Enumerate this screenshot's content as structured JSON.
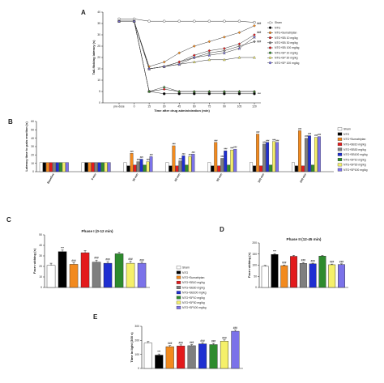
{
  "colors": {
    "Sham": "#ffffff",
    "NTG": "#000000",
    "NTG+Sumatriptan": "#f28a1e",
    "NTG+SB10": "#e31a1c",
    "NTG+SB30": "#7f7f7f",
    "NTG+SB100": "#1f2fd1",
    "NTG+SP10": "#2e8b2e",
    "NTG+SP30": "#f5f06a",
    "NTG+SP100": "#7b72e9"
  },
  "chart_data": [
    {
      "panel": "A",
      "type": "line",
      "xlabel": "Time after drug administration (min)",
      "ylabel": "Tail-flicking latency (s)",
      "x": [
        "pre-dose",
        "0",
        "15",
        "30",
        "45",
        "60",
        "75",
        "90",
        "105",
        "120"
      ],
      "yticks": [
        "0",
        "5",
        "10",
        "15",
        "20",
        "25",
        "30",
        "35",
        "40"
      ],
      "ylim": [
        0,
        40
      ],
      "series": [
        {
          "name": "Sham",
          "marker": "circle-open",
          "values": [
            37,
            37,
            36,
            36,
            36,
            36,
            36,
            36,
            36,
            35.5
          ]
        },
        {
          "name": "NTG",
          "marker": "circle",
          "values": [
            36,
            36,
            5,
            4,
            4,
            4,
            4,
            4,
            4,
            4
          ]
        },
        {
          "name": "NTG+Sumatriptan",
          "marker": "diamond",
          "values": [
            36,
            36,
            16,
            18,
            22,
            25,
            27,
            29,
            31,
            34
          ]
        },
        {
          "name": "NTG+SB 10 mg/kg",
          "marker": "diamond",
          "values": [
            36,
            36,
            5,
            6,
            5,
            5,
            5,
            5,
            5,
            5
          ]
        },
        {
          "name": "NTG+SB 30 mg/kg",
          "marker": "diamond",
          "values": [
            36,
            36,
            15,
            16,
            18,
            20,
            22,
            23,
            25,
            27
          ]
        },
        {
          "name": "NTG+SB 100 mg/kg",
          "marker": "diamond",
          "values": [
            36,
            36,
            15,
            16,
            18,
            21,
            23,
            24,
            26,
            30
          ]
        },
        {
          "name": "NTG+SP 10 mg/kg",
          "marker": "triangle",
          "values": [
            36,
            36,
            5,
            7,
            5,
            5,
            5,
            5,
            5,
            5
          ]
        },
        {
          "name": "NTG+SP 30 mg/kg",
          "marker": "triangle",
          "values": [
            36,
            36,
            15,
            16,
            17,
            18,
            19,
            19,
            20,
            20
          ]
        },
        {
          "name": "NTG+SP 100 mg/kg",
          "marker": "star",
          "values": [
            36,
            36,
            15,
            16,
            17,
            20,
            21,
            22,
            24,
            29
          ]
        }
      ],
      "annotation_ntg": "***",
      "annotations_end": [
        "###",
        "###",
        "###"
      ]
    },
    {
      "panel": "B",
      "type": "bar",
      "ylabel": "Latency time to pain reaction (s)",
      "categories": [
        "Baseline",
        "0 min",
        "30 min",
        "60 min",
        "90 min",
        "120 min",
        "240 min"
      ],
      "yticks": [
        "0",
        "10",
        "20",
        "30",
        "40",
        "50",
        "60"
      ],
      "ylim": [
        0,
        60
      ],
      "legend": [
        "Sham",
        "NTG",
        "NTG+Sumatriptan",
        "NTG+SB10 mg/kg",
        "NTG+SB30 mg/kg",
        "NTG+SB100 mg/kg",
        "NTG+SP10 mg/kg",
        "NTG+SP30 mg/kg",
        "NTG+SP100 mg/kg"
      ],
      "series": [
        {
          "key": "Sham",
          "values": [
            11,
            11,
            11,
            11,
            11,
            11,
            11
          ]
        },
        {
          "key": "NTG",
          "values": [
            11,
            11,
            7,
            7,
            7,
            7,
            7
          ]
        },
        {
          "key": "NTG+Sumatriptan",
          "values": [
            11,
            11,
            22,
            31,
            35,
            45,
            49
          ]
        },
        {
          "key": "NTG+SB10",
          "values": [
            11,
            11,
            8,
            7,
            7,
            7,
            7
          ]
        },
        {
          "key": "NTG+SB30",
          "values": [
            11,
            11,
            12,
            13,
            16,
            33,
            40
          ]
        },
        {
          "key": "NTG+SB100",
          "values": [
            11,
            11,
            15,
            19,
            25,
            35,
            43
          ]
        },
        {
          "key": "NTG+SP10",
          "values": [
            11,
            11,
            8,
            8,
            8,
            8,
            8
          ]
        },
        {
          "key": "NTG+SP30",
          "values": [
            11,
            11,
            12,
            18,
            26,
            36,
            41
          ]
        },
        {
          "key": "NTG+SP100",
          "values": [
            11,
            11,
            18,
            21,
            27,
            35,
            42
          ]
        }
      ],
      "sig_label": "###"
    },
    {
      "panel": "C",
      "type": "bar",
      "title": "Phase I (0-12 min)",
      "ylabel": "Face rubbing (s)",
      "yticks": [
        "0",
        "10",
        "20",
        "30",
        "40",
        "50"
      ],
      "ylim": [
        0,
        50
      ],
      "keys": [
        "Sham",
        "NTG",
        "NTG+Sumatriptan",
        "NTG+SB10",
        "NTG+SB30",
        "NTG+SB100",
        "NTG+SP10",
        "NTG+SP30",
        "NTG+SP100"
      ],
      "values": [
        21,
        34,
        22,
        33,
        24,
        23,
        32,
        23,
        23
      ],
      "errors": [
        2,
        1.5,
        1.5,
        2,
        2,
        1.5,
        1.5,
        2,
        1
      ],
      "sig": [
        "",
        "***",
        "###",
        "",
        "###",
        "###",
        "",
        "###",
        "###"
      ]
    },
    {
      "panel": "D",
      "type": "bar",
      "title": "Phase II (12-45 min)",
      "ylabel": "Face rubbing (s)",
      "yticks": [
        "0",
        "50",
        "100",
        "150",
        "200"
      ],
      "ylim": [
        0,
        200
      ],
      "keys": [
        "Sham",
        "NTG",
        "NTG+Sumatriptan",
        "NTG+SB10",
        "NTG+SB30",
        "NTG+SB100",
        "NTG+SP10",
        "NTG+SP30",
        "NTG+SP100"
      ],
      "values": [
        95,
        148,
        98,
        140,
        108,
        106,
        141,
        102,
        103
      ],
      "errors": [
        4,
        4,
        3,
        4,
        4,
        3,
        3,
        3,
        3
      ],
      "sig": [
        "",
        "***",
        "###",
        "",
        "###",
        "###",
        "",
        "###",
        "###"
      ]
    },
    {
      "panel": "E",
      "type": "bar",
      "ylabel": "Time in light (300 s)",
      "yticks": [
        "0",
        "100",
        "200",
        "300"
      ],
      "ylim": [
        0,
        300
      ],
      "keys": [
        "Sham",
        "NTG",
        "NTG+Sumatriptan",
        "NTG+SB10",
        "NTG+SB30",
        "NTG+SB100",
        "NTG+SP10",
        "NTG+SP30",
        "NTG+SP100"
      ],
      "values": [
        180,
        95,
        155,
        160,
        162,
        175,
        170,
        195,
        265
      ],
      "errors": [
        12,
        8,
        8,
        8,
        8,
        8,
        8,
        8,
        8
      ],
      "sig": [
        "",
        "***",
        "###",
        "###",
        "###",
        "###",
        "###",
        "###",
        "###"
      ]
    }
  ],
  "legend_shared": [
    "Sham",
    "NTG",
    "NTG+Sumatriptan",
    "NTG+SB10 mg/kg",
    "NTG+SB30 mg/kg",
    "NTG+SB100 mg/kg",
    "NTG+SP10 mg/kg",
    "NTG+SP30 mg/kg",
    "NTG+SP100 mg/kg"
  ],
  "legend_shared_keys": [
    "Sham",
    "NTG",
    "NTG+Sumatriptan",
    "NTG+SB10",
    "NTG+SB30",
    "NTG+SB100",
    "NTG+SP10",
    "NTG+SP30",
    "NTG+SP100"
  ]
}
